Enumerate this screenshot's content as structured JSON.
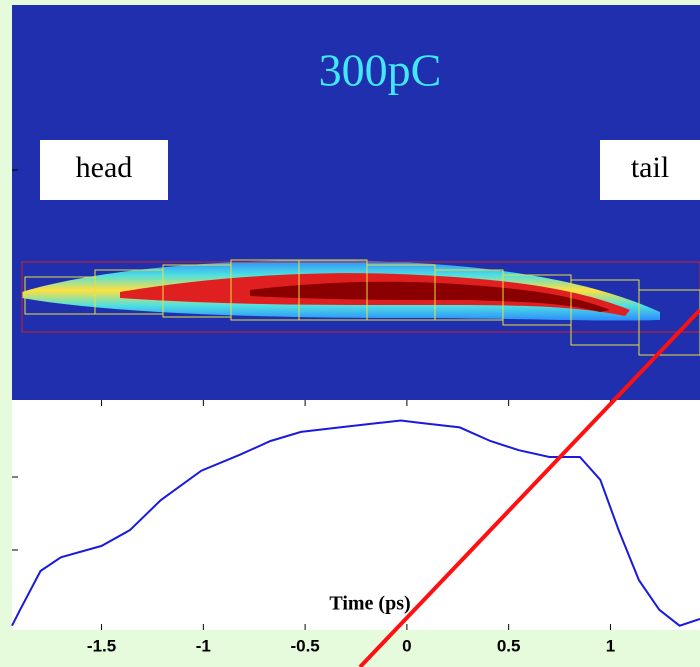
{
  "chart_data": {
    "type": "line",
    "title": "300pC",
    "annotations": [
      "head",
      "tail"
    ],
    "x_label": "Time (ps)",
    "x": [
      -1.94,
      -1.9,
      -1.8,
      -1.7,
      -1.5,
      -1.36,
      -1.21,
      -1.01,
      -0.82,
      -0.67,
      -0.52,
      -0.33,
      -0.13,
      -0.03,
      0.06,
      0.26,
      0.41,
      0.55,
      0.7,
      0.85,
      0.95,
      1.04,
      1.14,
      1.24,
      1.34,
      1.44
    ],
    "values": [
      0.01,
      0.08,
      0.25,
      0.31,
      0.36,
      0.43,
      0.56,
      0.69,
      0.76,
      0.82,
      0.86,
      0.88,
      0.9,
      0.91,
      0.9,
      0.88,
      0.82,
      0.78,
      0.75,
      0.75,
      0.65,
      0.43,
      0.21,
      0.08,
      0.01,
      0.04
    ],
    "color": "#1a1adf",
    "xlim": [
      -1.94,
      1.44
    ],
    "ylim": [
      0,
      1
    ],
    "xticks": [
      -1.5,
      -1,
      -0.5,
      0,
      0.5,
      1
    ]
  }
}
